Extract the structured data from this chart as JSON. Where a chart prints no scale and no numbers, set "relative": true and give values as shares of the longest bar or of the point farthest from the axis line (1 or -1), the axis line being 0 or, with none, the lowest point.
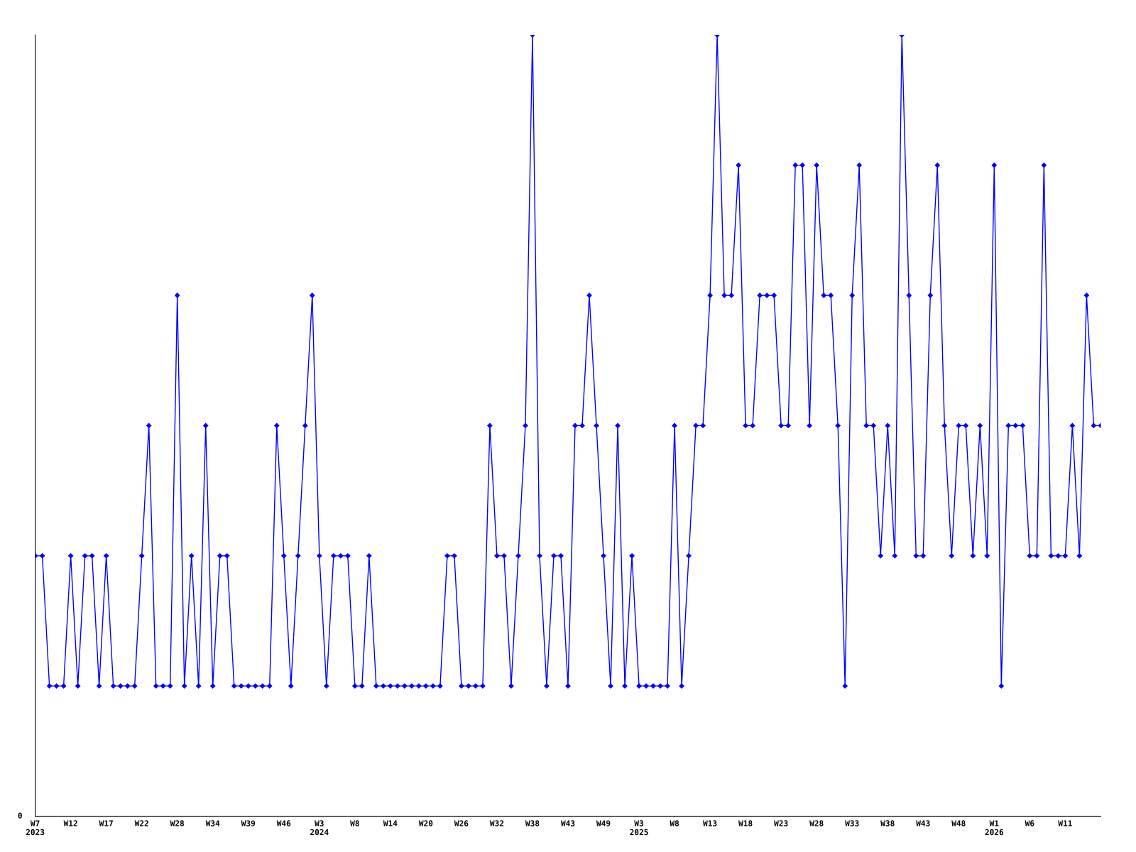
{
  "chart_data": {
    "type": "line",
    "relative": true,
    "color": "#0000ff",
    "marker": "diamond",
    "line_style": "solid",
    "grid": false,
    "legend": false,
    "annotations": [
      "0"
    ],
    "categories": [
      "W7\n2023",
      null,
      null,
      null,
      null,
      "W12",
      null,
      null,
      null,
      null,
      "W17",
      null,
      null,
      null,
      null,
      "W22",
      null,
      null,
      null,
      null,
      "W28",
      null,
      null,
      null,
      null,
      "W34",
      null,
      null,
      null,
      null,
      "W39",
      null,
      null,
      null,
      null,
      "W46",
      null,
      null,
      null,
      null,
      "W3\n2024",
      null,
      null,
      null,
      null,
      "W8",
      null,
      null,
      null,
      null,
      "W14",
      null,
      null,
      null,
      null,
      "W20",
      null,
      null,
      null,
      null,
      "W26",
      null,
      null,
      null,
      null,
      "W32",
      null,
      null,
      null,
      null,
      "W38",
      null,
      null,
      null,
      null,
      "W43",
      null,
      null,
      null,
      null,
      "W49",
      null,
      null,
      null,
      null,
      "W3\n2025",
      null,
      null,
      null,
      null,
      "W8",
      null,
      null,
      null,
      null,
      "W13",
      null,
      null,
      null,
      null,
      "W18",
      null,
      null,
      null,
      null,
      "W23",
      null,
      null,
      null,
      null,
      "W28",
      null,
      null,
      null,
      null,
      "W33",
      null,
      null,
      null,
      null,
      "W38",
      null,
      null,
      null,
      null,
      "W43",
      null,
      null,
      null,
      null,
      "W48",
      null,
      null,
      null,
      null,
      "W1\n2026",
      null,
      null,
      null,
      null,
      "W6",
      null,
      null,
      null,
      null,
      "W11",
      null,
      null,
      null,
      null,
      null
    ],
    "values": [
      0.3333,
      0.3333,
      0.1667,
      0.1667,
      0.1667,
      0.3333,
      0.1667,
      0.3333,
      0.3333,
      0.1667,
      0.3333,
      0.1667,
      0.1667,
      0.1667,
      0.1667,
      0.3333,
      0.5,
      0.1667,
      0.1667,
      0.1667,
      0.6667,
      0.1667,
      0.3333,
      0.1667,
      0.5,
      0.1667,
      0.3333,
      0.3333,
      0.1667,
      0.1667,
      0.1667,
      0.1667,
      0.1667,
      0.1667,
      0.5,
      0.3333,
      0.1667,
      0.3333,
      0.5,
      0.6667,
      0.3333,
      0.1667,
      0.3333,
      0.3333,
      0.3333,
      0.1667,
      0.1667,
      0.3333,
      0.1667,
      0.1667,
      0.1667,
      0.1667,
      0.1667,
      0.1667,
      0.1667,
      0.1667,
      0.1667,
      0.1667,
      0.3333,
      0.3333,
      0.1667,
      0.1667,
      0.1667,
      0.1667,
      0.5,
      0.3333,
      0.3333,
      0.1667,
      0.3333,
      0.5,
      1,
      0.3333,
      0.1667,
      0.3333,
      0.3333,
      0.1667,
      0.5,
      0.5,
      0.6667,
      0.5,
      0.3333,
      0.1667,
      0.5,
      0.1667,
      0.3333,
      0.1667,
      0.1667,
      0.1667,
      0.1667,
      0.1667,
      0.5,
      0.1667,
      0.3333,
      0.5,
      0.5,
      0.6667,
      1,
      0.6667,
      0.6667,
      0.8333,
      0.5,
      0.5,
      0.6667,
      0.6667,
      0.6667,
      0.5,
      0.5,
      0.8333,
      0.8333,
      0.5,
      0.8333,
      0.6667,
      0.6667,
      0.5,
      0.1667,
      0.6667,
      0.8333,
      0.5,
      0.5,
      0.3333,
      0.5,
      0.3333,
      1,
      0.6667,
      0.3333,
      0.3333,
      0.6667,
      0.8333,
      0.5,
      0.3333,
      0.5,
      0.5,
      0.3333,
      0.5,
      0.3333,
      0.8333,
      0.1667,
      0.5,
      0.5,
      0.5,
      0.3333,
      0.3333,
      0.8333,
      0.3333,
      0.3333,
      0.3333,
      0.5,
      0.3333,
      0.6667,
      0.5,
      0.5
    ]
  }
}
